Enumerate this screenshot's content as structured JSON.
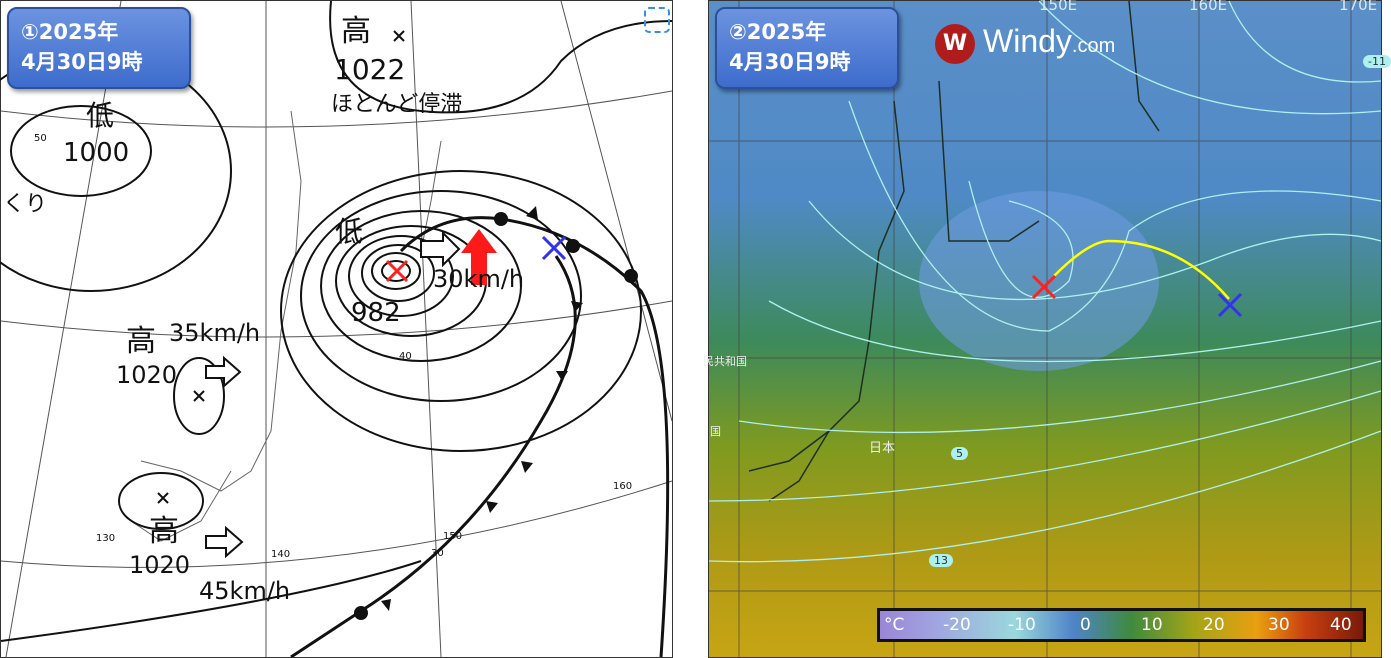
{
  "left_panel": {
    "badge": {
      "line1": "①2025年",
      "line2": "4月30日9時"
    },
    "labels": {
      "high_north": "高",
      "high_north_pressure": "1022",
      "high_north_note": "ほとんど停滞",
      "low_west": "低",
      "low_west_pressure": "1000",
      "low_west_note": "くり",
      "low_main": "低",
      "low_main_pressure": "982",
      "low_main_speed": "30km/h",
      "high_center": "高",
      "high_center_pressure": "1020",
      "high_center_speed": "35km/h",
      "high_south": "高",
      "high_south_pressure": "1020",
      "high_south_speed": "45km/h"
    },
    "grid_labels": {
      "lat50": "50",
      "lat40": "40",
      "lat30": "30",
      "lon130": "130",
      "lon140": "140",
      "lon150": "150",
      "lon160": "160"
    },
    "markers": {
      "red_x_color": "#ff2020",
      "blue_x_color": "#3333ee",
      "red_arrow_color": "#ff1a1a"
    }
  },
  "right_panel": {
    "badge": {
      "line1": "②2025年",
      "line2": "4月30日9時"
    },
    "brand": {
      "name": "Windy",
      "suffix": ".com",
      "color": "#b01c1c"
    },
    "lon_labels": [
      "150E",
      "160E",
      "170E"
    ],
    "contour_labels": [
      "-11",
      "5",
      "13"
    ],
    "place_labels": {
      "japan": "日本",
      "republic": "民共和国",
      "country": "国"
    },
    "track_color": "#ffff00",
    "legend": {
      "unit": "°C",
      "ticks": [
        "-20",
        "-10",
        "0",
        "10",
        "20",
        "30",
        "40"
      ]
    }
  }
}
